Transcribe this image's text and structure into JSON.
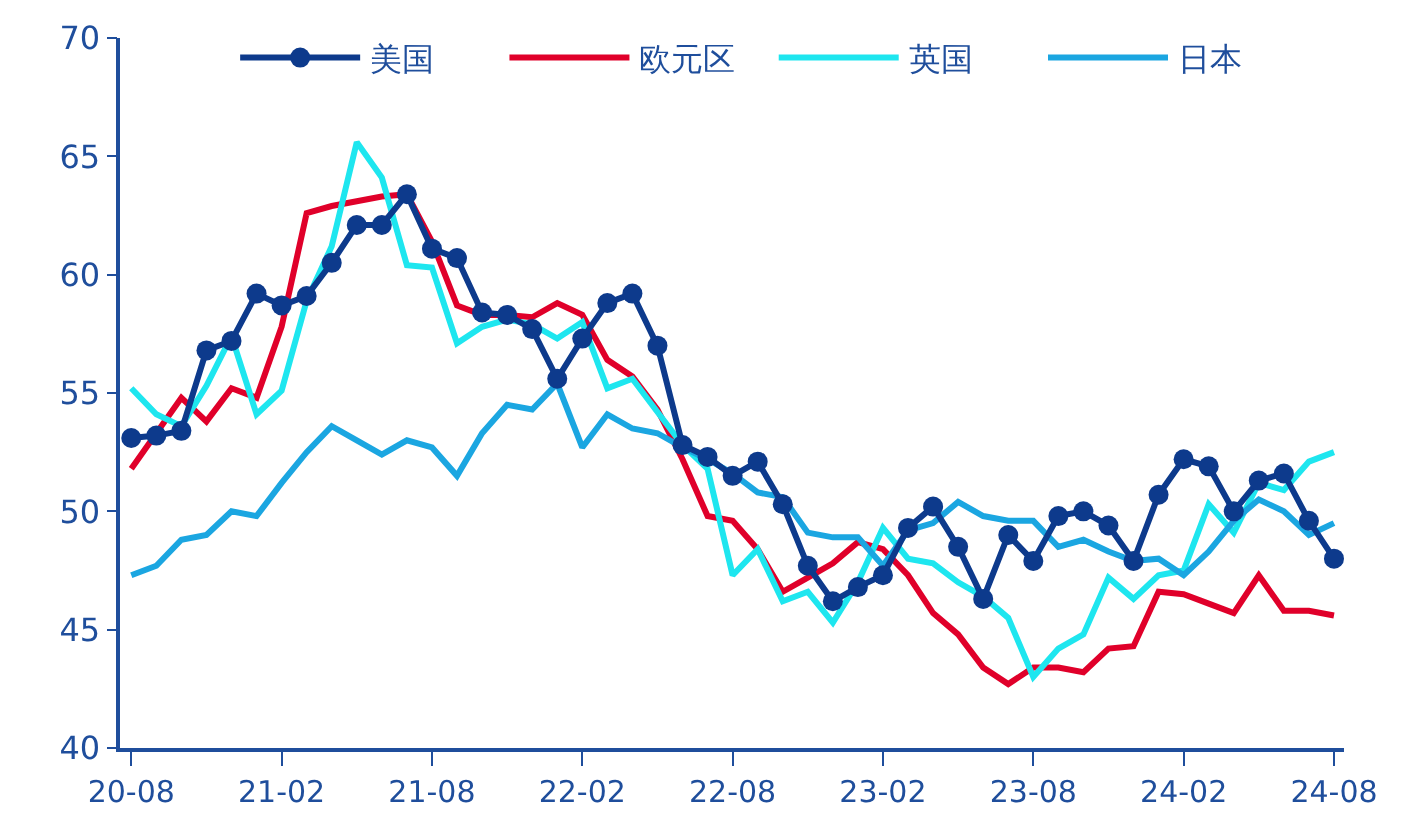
{
  "chart_data": {
    "type": "line",
    "categories": [
      "20-08",
      null,
      null,
      null,
      null,
      null,
      "21-02",
      null,
      null,
      null,
      null,
      null,
      "21-08",
      null,
      null,
      null,
      null,
      null,
      "22-02",
      null,
      null,
      null,
      null,
      null,
      "22-08",
      null,
      null,
      null,
      null,
      null,
      "23-02",
      null,
      null,
      null,
      null,
      null,
      "23-08",
      null,
      null,
      null,
      null,
      null,
      "24-02",
      null,
      null,
      null,
      null,
      null,
      "24-08"
    ],
    "series": [
      {
        "name": "美国",
        "color": "#0d3a8c",
        "marker": "circle",
        "values": [
          53.1,
          53.2,
          53.4,
          56.8,
          57.2,
          59.2,
          58.7,
          59.1,
          60.5,
          62.1,
          62.1,
          63.4,
          61.1,
          60.7,
          58.4,
          58.3,
          57.7,
          55.6,
          57.3,
          58.8,
          59.2,
          57.0,
          52.8,
          52.3,
          51.5,
          52.1,
          50.3,
          47.7,
          46.2,
          46.8,
          47.3,
          49.3,
          50.2,
          48.5,
          46.3,
          49.0,
          47.9,
          49.8,
          50.0,
          49.4,
          47.9,
          50.7,
          52.2,
          51.9,
          50.0,
          51.3,
          51.6,
          49.6,
          48.0
        ]
      },
      {
        "name": "欧元区",
        "color": "#e0002a",
        "marker": "none",
        "values": [
          51.8,
          53.3,
          54.8,
          53.8,
          55.2,
          54.8,
          57.8,
          62.6,
          62.9,
          63.1,
          63.3,
          63.4,
          61.4,
          58.7,
          58.3,
          58.3,
          58.2,
          58.8,
          58.3,
          56.4,
          55.7,
          54.3,
          52.2,
          49.8,
          49.6,
          48.4,
          46.6,
          47.2,
          47.8,
          48.7,
          48.4,
          47.3,
          45.7,
          44.8,
          43.4,
          42.7,
          43.4,
          43.4,
          43.2,
          44.2,
          44.3,
          46.6,
          46.5,
          46.1,
          45.7,
          47.3,
          45.8,
          45.8,
          45.6
        ]
      },
      {
        "name": "英国",
        "color": "#1ee6ef",
        "marker": "none",
        "values": [
          55.2,
          54.1,
          53.6,
          55.3,
          57.4,
          54.1,
          55.1,
          58.9,
          61.2,
          65.6,
          64.1,
          60.4,
          60.3,
          57.1,
          57.8,
          58.1,
          57.9,
          57.3,
          58.0,
          55.2,
          55.6,
          54.2,
          52.8,
          51.8,
          47.3,
          48.4,
          46.2,
          46.6,
          45.3,
          47.0,
          49.3,
          48.0,
          47.8,
          47.0,
          46.4,
          45.5,
          43.0,
          44.2,
          44.8,
          47.2,
          46.3,
          47.3,
          47.5,
          50.3,
          49.1,
          51.2,
          50.9,
          52.1,
          52.5
        ]
      },
      {
        "name": "日本",
        "color": "#1ba6e1",
        "marker": "none",
        "values": [
          47.3,
          47.7,
          48.8,
          49.0,
          50.0,
          49.8,
          51.2,
          52.5,
          53.6,
          53.0,
          52.4,
          53.0,
          52.7,
          51.5,
          53.3,
          54.5,
          54.3,
          55.4,
          52.7,
          54.1,
          53.5,
          53.3,
          52.7,
          52.2,
          51.6,
          50.8,
          50.6,
          49.1,
          48.9,
          48.9,
          47.7,
          49.2,
          49.5,
          50.4,
          49.8,
          49.6,
          49.6,
          48.5,
          48.8,
          48.3,
          47.9,
          48.0,
          47.3,
          48.3,
          49.6,
          50.5,
          50.0,
          49.0,
          49.5
        ]
      }
    ],
    "ylim": [
      40,
      70
    ],
    "yticks": [
      40,
      45,
      50,
      55,
      60,
      65,
      70
    ],
    "grid": false,
    "legend": "top",
    "line_style": "solid"
  }
}
